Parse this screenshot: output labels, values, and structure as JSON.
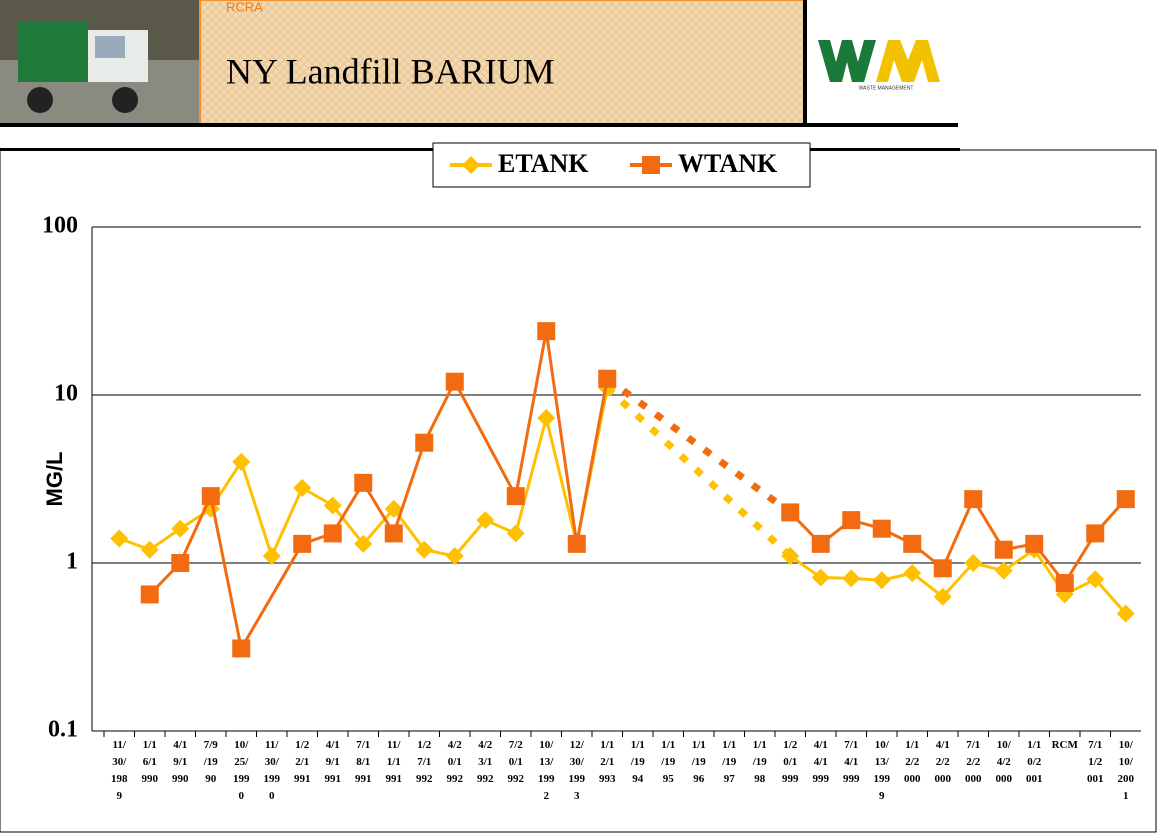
{
  "header": {
    "tag": "RCRA",
    "title": "NY Landfill BARIUM",
    "logo_text": "WASTE MANAGEMENT"
  },
  "chart_data": {
    "type": "line",
    "y_label": "MG/L",
    "log_scale": true,
    "ylim": [
      0.1,
      100
    ],
    "yticks": [
      0.1,
      1,
      10,
      100
    ],
    "grid": true,
    "legend": "top",
    "categories": [
      "11/30/1989",
      "1/16/1990",
      "4/19/1990",
      "7/9/1990",
      "10/25/1990",
      "11/30/1990",
      "1/22/1991",
      "4/19/1991",
      "7/18/1991",
      "11/1/1991",
      "1/27/1992",
      "4/20/1992",
      "4/23/1992",
      "7/20/1992",
      "10/13/1992",
      "12/30/1993",
      "1/12/1993",
      "1/1/1994",
      "1/1/1995",
      "1/1/1996",
      "1/1/1997",
      "1/1/1998",
      "1/20/1999",
      "4/14/1999",
      "7/14/1999",
      "10/13/1999",
      "1/12/2000",
      "4/12/2000",
      "7/12/2000",
      "10/4/2000",
      "1/10/2001",
      "RCM",
      "7/11/2001",
      "10/10/2001"
    ],
    "series": [
      {
        "name": "ETANK",
        "color": "#ffc000",
        "marker": "diamond",
        "values": [
          1.4,
          1.2,
          1.6,
          2.1,
          4,
          1.1,
          2.8,
          2.2,
          1.3,
          2.1,
          1.2,
          1.1,
          1.8,
          1.5,
          7.3,
          1.3,
          11,
          null,
          null,
          null,
          null,
          null,
          1.1,
          0.82,
          0.81,
          0.79,
          0.87,
          0.63,
          1.0,
          0.9,
          1.2,
          0.65,
          0.8,
          0.5
        ]
      },
      {
        "name": "WTANK",
        "color": "#f26b10",
        "marker": "square",
        "values": [
          null,
          0.65,
          1.0,
          2.5,
          0.31,
          null,
          1.3,
          1.5,
          3.0,
          1.5,
          5.2,
          12,
          null,
          2.5,
          24,
          1.3,
          12.5,
          null,
          null,
          null,
          null,
          null,
          2.0,
          1.3,
          1.8,
          1.6,
          1.3,
          0.93,
          2.4,
          1.2,
          1.3,
          0.76,
          1.5,
          2.4
        ]
      }
    ]
  }
}
